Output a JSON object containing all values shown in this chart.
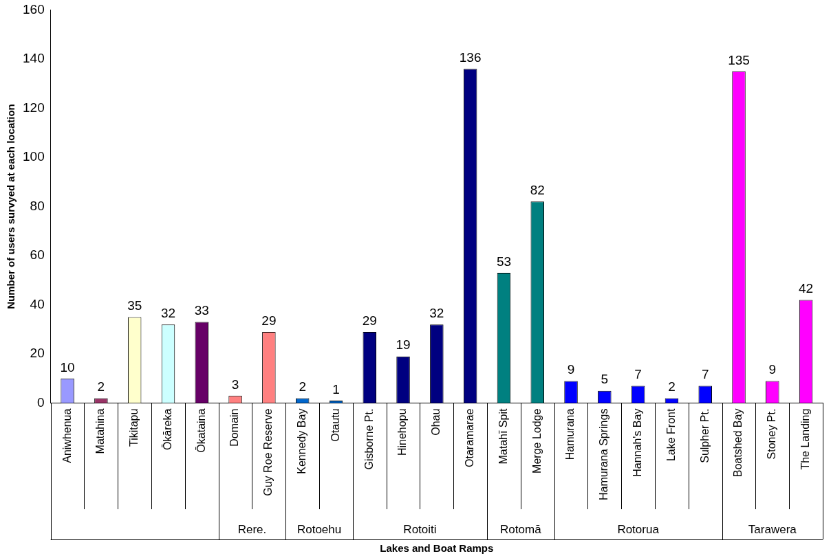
{
  "chart_data": {
    "type": "bar",
    "xlabel": "Lakes and Boat Ramps",
    "ylabel": "Number of users survyed at each location",
    "categories": [
      "Aniwhenua",
      "Matahina",
      "Tikitapu",
      "Ōkāreka",
      "Ōkataina",
      "Domain",
      "Guy Roe Reserve",
      "Kennedy Bay",
      "Otautu",
      "Gisborne Pt.",
      "Hinehopu",
      "Ohau",
      "Otaramarae",
      "Matahī Spit",
      "Merge Lodge",
      "Hamurana",
      "Hamurana Springs",
      "Hannah's Bay",
      "Lake Front",
      "Sulpher Pt.",
      "Boatshed Bay",
      "Stoney Pt.",
      "The Landing"
    ],
    "values": [
      10,
      2,
      35,
      32,
      33,
      3,
      29,
      2,
      1,
      29,
      19,
      32,
      136,
      53,
      82,
      9,
      5,
      7,
      2,
      7,
      135,
      9,
      42
    ],
    "colors": [
      "#9999ff",
      "#993366",
      "#ffffcc",
      "#ccffff",
      "#660066",
      "#ff8080",
      "#ff8080",
      "#0066cc",
      "#0066cc",
      "#000080",
      "#000080",
      "#000080",
      "#000080",
      "#008080",
      "#008080",
      "#0000ff",
      "#0000ff",
      "#0000ff",
      "#0000ff",
      "#0000ff",
      "#ff00ff",
      "#ff00ff",
      "#ff00ff"
    ],
    "annotations": [
      "Rere.",
      "Rotoehu",
      "Rotoiti",
      "Rotomā",
      "Rotorua",
      "Tarawera"
    ],
    "ylim": [
      0,
      160
    ],
    "yticks": [
      0,
      20,
      40,
      60,
      80,
      100,
      120,
      140,
      160
    ],
    "data_labels": true,
    "grid": false,
    "legend": false
  }
}
